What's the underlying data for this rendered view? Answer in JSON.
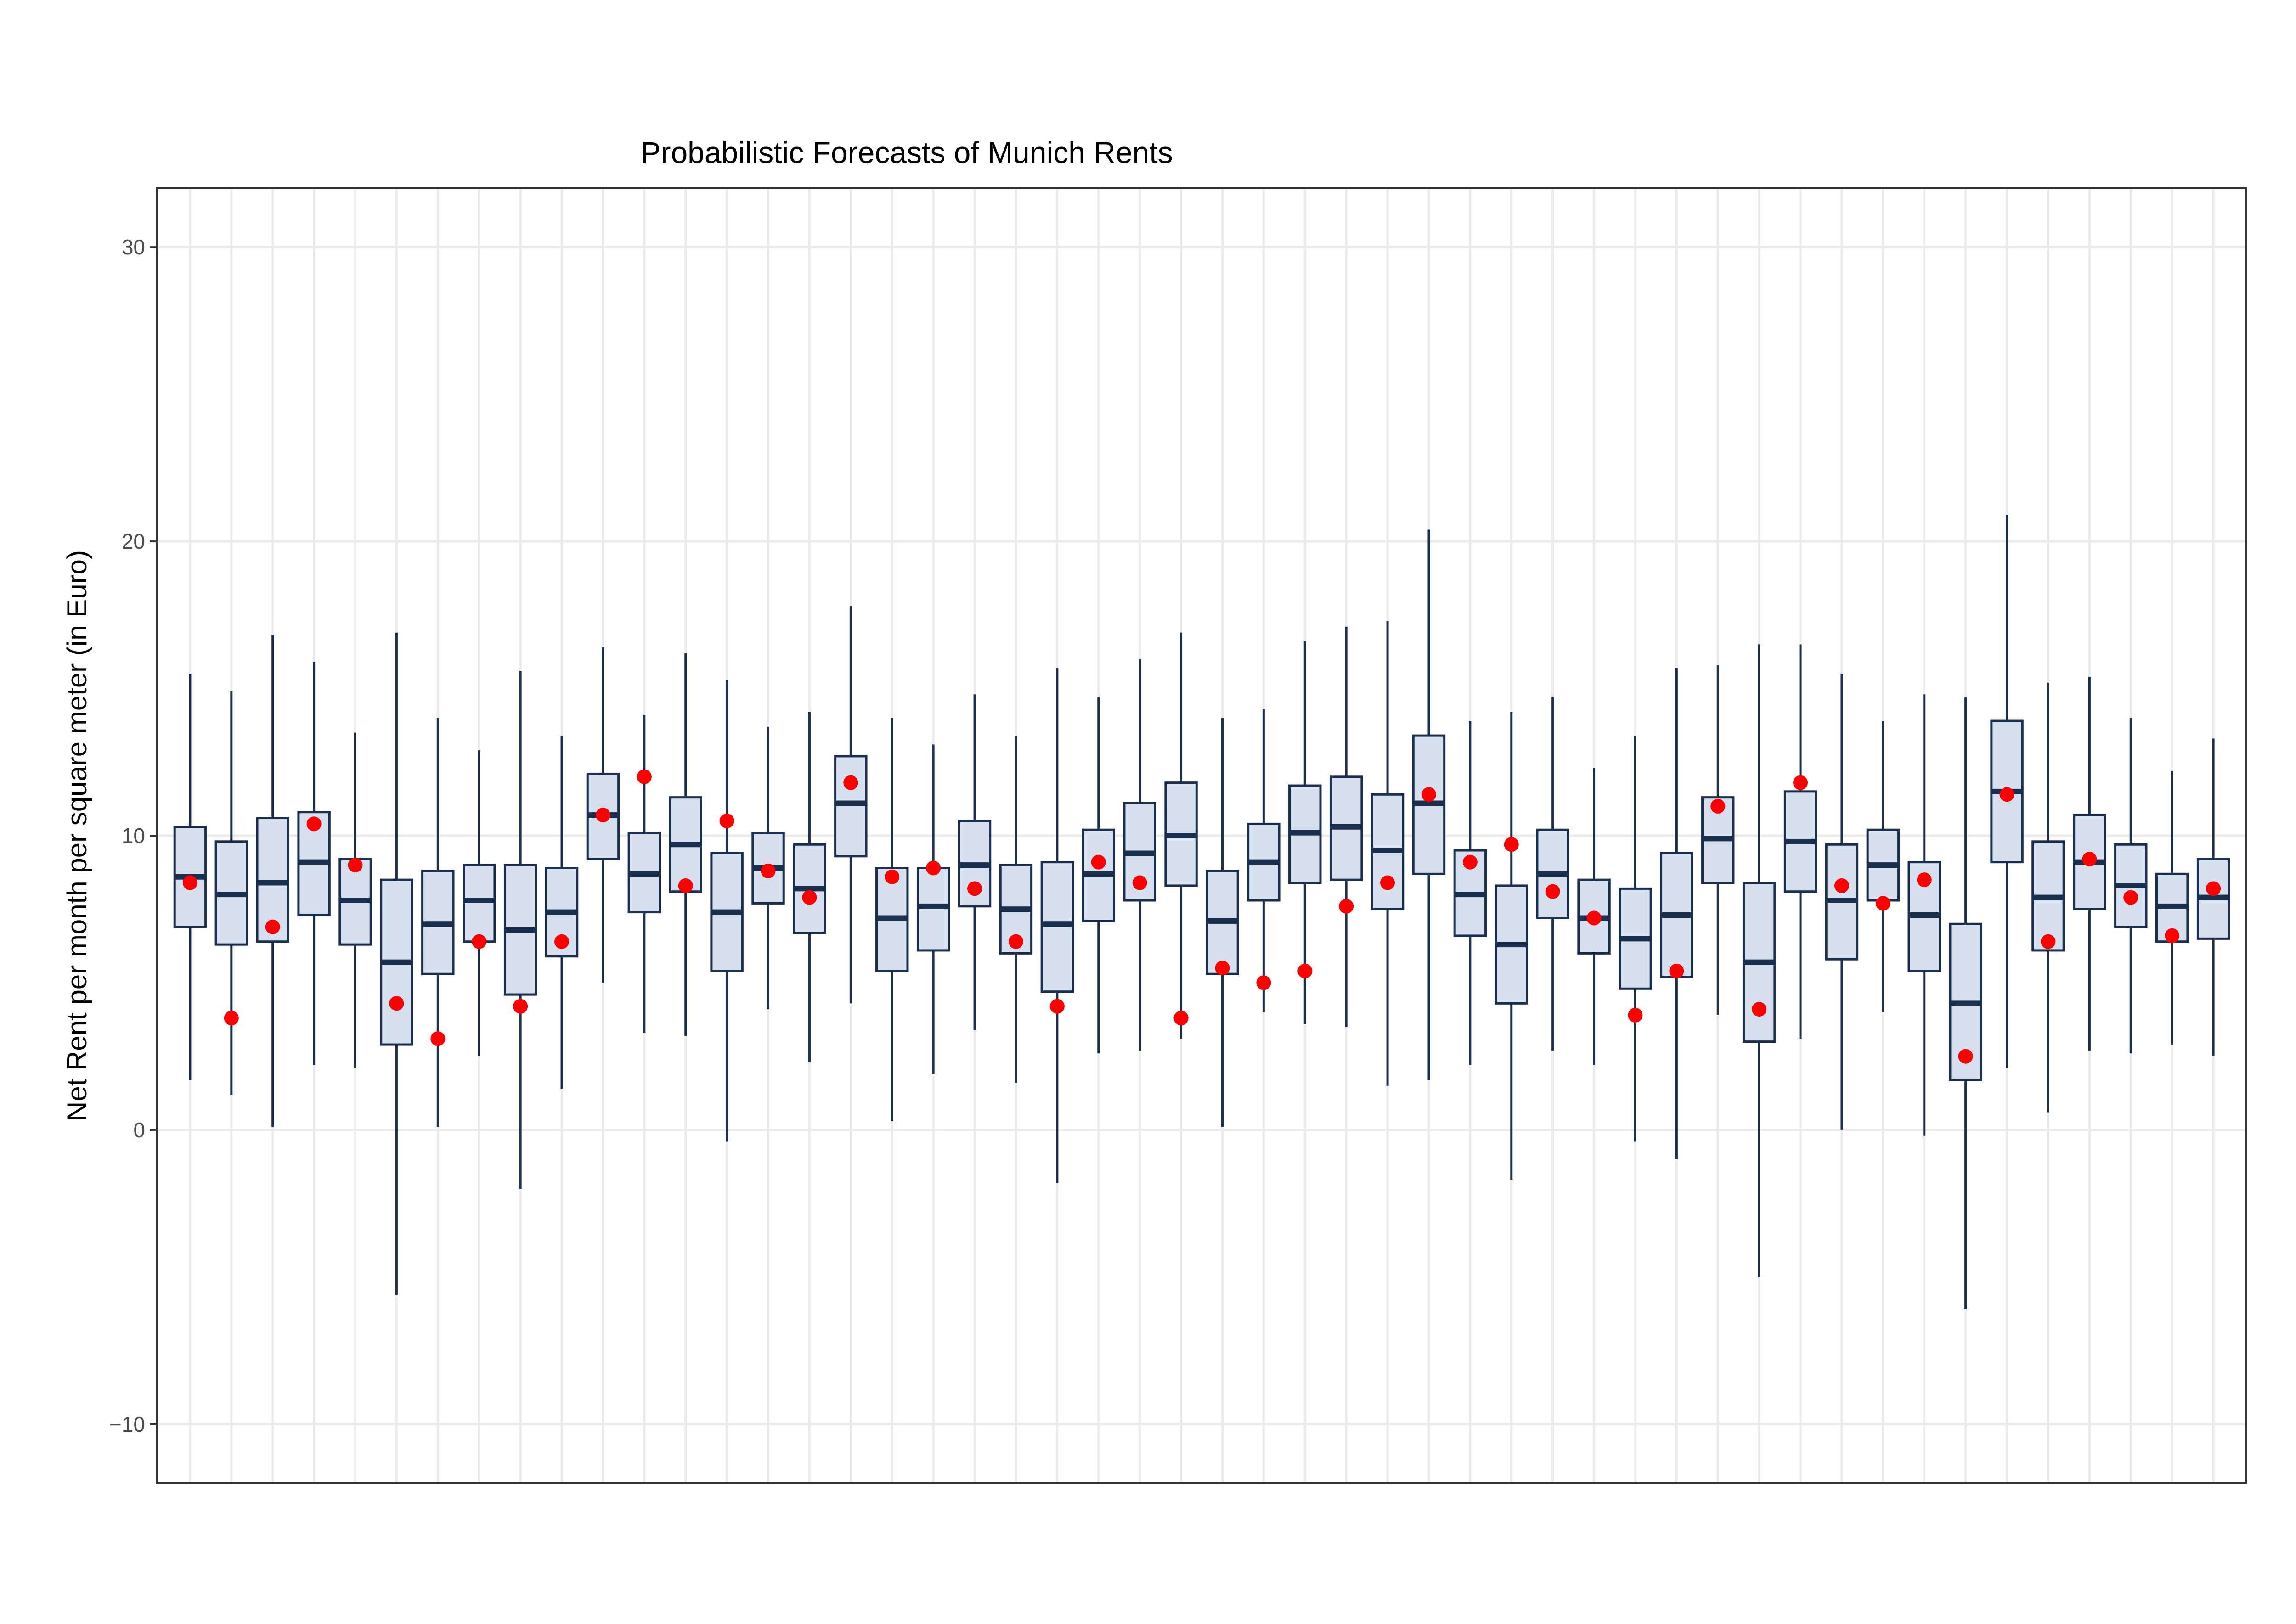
{
  "chart_data": {
    "type": "boxplot",
    "title": "Probabilistic Forecasts of Munich Rents",
    "xlabel": "",
    "ylabel": "Net Rent per month per square meter (in Euro)",
    "ylim": [
      -12,
      32
    ],
    "yticks": [
      -10,
      0,
      10,
      20,
      30
    ],
    "ytick_labels": [
      "−10",
      "0",
      "10",
      "20",
      "30"
    ],
    "grid": true,
    "legend": "none",
    "colors": {
      "box_fill": "#d7e0ee",
      "box_stroke": "#1a2f4d",
      "observation_point": "#ff0000",
      "grid_major": "#ebebeb",
      "grid_minor": "#f2f2f2",
      "panel_border": "#333333"
    },
    "boxes": [
      {
        "whisker_low": 1.7,
        "q1": 6.9,
        "median": 8.6,
        "q3": 10.3,
        "whisker_high": 15.5,
        "observed": 8.4
      },
      {
        "whisker_low": 1.2,
        "q1": 6.3,
        "median": 8.0,
        "q3": 9.8,
        "whisker_high": 14.9,
        "observed": 3.8
      },
      {
        "whisker_low": 0.1,
        "q1": 6.4,
        "median": 8.4,
        "q3": 10.6,
        "whisker_high": 16.8,
        "observed": 6.9
      },
      {
        "whisker_low": 2.2,
        "q1": 7.3,
        "median": 9.1,
        "q3": 10.8,
        "whisker_high": 15.9,
        "observed": 10.4
      },
      {
        "whisker_low": 2.1,
        "q1": 6.3,
        "median": 7.8,
        "q3": 9.2,
        "whisker_high": 13.5,
        "observed": 9.0
      },
      {
        "whisker_low": -5.6,
        "q1": 2.9,
        "median": 5.7,
        "q3": 8.5,
        "whisker_high": 16.9,
        "observed": 4.3
      },
      {
        "whisker_low": 0.1,
        "q1": 5.3,
        "median": 7.0,
        "q3": 8.8,
        "whisker_high": 14.0,
        "observed": 3.1
      },
      {
        "whisker_low": 2.5,
        "q1": 6.4,
        "median": 7.8,
        "q3": 9.0,
        "whisker_high": 12.9,
        "observed": 6.4
      },
      {
        "whisker_low": -2.0,
        "q1": 4.6,
        "median": 6.8,
        "q3": 9.0,
        "whisker_high": 15.6,
        "observed": 4.2
      },
      {
        "whisker_low": 1.4,
        "q1": 5.9,
        "median": 7.4,
        "q3": 8.9,
        "whisker_high": 13.4,
        "observed": 6.4
      },
      {
        "whisker_low": 5.0,
        "q1": 9.2,
        "median": 10.7,
        "q3": 12.1,
        "whisker_high": 16.4,
        "observed": 10.7
      },
      {
        "whisker_low": 3.3,
        "q1": 7.4,
        "median": 8.7,
        "q3": 10.1,
        "whisker_high": 14.1,
        "observed": 12.0
      },
      {
        "whisker_low": 3.2,
        "q1": 8.1,
        "median": 9.7,
        "q3": 11.3,
        "whisker_high": 16.2,
        "observed": 8.3
      },
      {
        "whisker_low": -0.4,
        "q1": 5.4,
        "median": 7.4,
        "q3": 9.4,
        "whisker_high": 15.3,
        "observed": 10.5
      },
      {
        "whisker_low": 4.1,
        "q1": 7.7,
        "median": 8.9,
        "q3": 10.1,
        "whisker_high": 13.7,
        "observed": 8.8
      },
      {
        "whisker_low": 2.3,
        "q1": 6.7,
        "median": 8.2,
        "q3": 9.7,
        "whisker_high": 14.2,
        "observed": 7.9
      },
      {
        "whisker_low": 4.3,
        "q1": 9.3,
        "median": 11.1,
        "q3": 12.7,
        "whisker_high": 17.8,
        "observed": 11.8
      },
      {
        "whisker_low": 0.3,
        "q1": 5.4,
        "median": 7.2,
        "q3": 8.9,
        "whisker_high": 14.0,
        "observed": 8.6
      },
      {
        "whisker_low": 1.9,
        "q1": 6.1,
        "median": 7.6,
        "q3": 8.9,
        "whisker_high": 13.1,
        "observed": 8.9
      },
      {
        "whisker_low": 3.4,
        "q1": 7.6,
        "median": 9.0,
        "q3": 10.5,
        "whisker_high": 14.8,
        "observed": 8.2
      },
      {
        "whisker_low": 1.6,
        "q1": 6.0,
        "median": 7.5,
        "q3": 9.0,
        "whisker_high": 13.4,
        "observed": 6.4
      },
      {
        "whisker_low": -1.8,
        "q1": 4.7,
        "median": 7.0,
        "q3": 9.1,
        "whisker_high": 15.7,
        "observed": 4.2
      },
      {
        "whisker_low": 2.6,
        "q1": 7.1,
        "median": 8.7,
        "q3": 10.2,
        "whisker_high": 14.7,
        "observed": 9.1
      },
      {
        "whisker_low": 2.7,
        "q1": 7.8,
        "median": 9.4,
        "q3": 11.1,
        "whisker_high": 16.0,
        "observed": 8.4
      },
      {
        "whisker_low": 3.1,
        "q1": 8.3,
        "median": 10.0,
        "q3": 11.8,
        "whisker_high": 16.9,
        "observed": 3.8
      },
      {
        "whisker_low": 0.1,
        "q1": 5.3,
        "median": 7.1,
        "q3": 8.8,
        "whisker_high": 14.0,
        "observed": 5.5
      },
      {
        "whisker_low": 4.0,
        "q1": 7.8,
        "median": 9.1,
        "q3": 10.4,
        "whisker_high": 14.3,
        "observed": 5.0
      },
      {
        "whisker_low": 3.6,
        "q1": 8.4,
        "median": 10.1,
        "q3": 11.7,
        "whisker_high": 16.6,
        "observed": 5.4
      },
      {
        "whisker_low": 3.5,
        "q1": 8.5,
        "median": 10.3,
        "q3": 12.0,
        "whisker_high": 17.1,
        "observed": 7.6
      },
      {
        "whisker_low": 1.5,
        "q1": 7.5,
        "median": 9.5,
        "q3": 11.4,
        "whisker_high": 17.3,
        "observed": 8.4
      },
      {
        "whisker_low": 1.7,
        "q1": 8.7,
        "median": 11.1,
        "q3": 13.4,
        "whisker_high": 20.4,
        "observed": 11.4
      },
      {
        "whisker_low": 2.2,
        "q1": 6.6,
        "median": 8.0,
        "q3": 9.5,
        "whisker_high": 13.9,
        "observed": 9.1
      },
      {
        "whisker_low": -1.7,
        "q1": 4.3,
        "median": 6.3,
        "q3": 8.3,
        "whisker_high": 14.2,
        "observed": 9.7
      },
      {
        "whisker_low": 2.7,
        "q1": 7.2,
        "median": 8.7,
        "q3": 10.2,
        "whisker_high": 14.7,
        "observed": 8.1
      },
      {
        "whisker_low": 2.2,
        "q1": 6.0,
        "median": 7.2,
        "q3": 8.5,
        "whisker_high": 12.3,
        "observed": 7.2
      },
      {
        "whisker_low": -0.4,
        "q1": 4.8,
        "median": 6.5,
        "q3": 8.2,
        "whisker_high": 13.4,
        "observed": 3.9
      },
      {
        "whisker_low": -1.0,
        "q1": 5.2,
        "median": 7.3,
        "q3": 9.4,
        "whisker_high": 15.7,
        "observed": 5.4
      },
      {
        "whisker_low": 3.9,
        "q1": 8.4,
        "median": 9.9,
        "q3": 11.3,
        "whisker_high": 15.8,
        "observed": 11.0
      },
      {
        "whisker_low": -5.0,
        "q1": 3.0,
        "median": 5.7,
        "q3": 8.4,
        "whisker_high": 16.5,
        "observed": 4.1
      },
      {
        "whisker_low": 3.1,
        "q1": 8.1,
        "median": 9.8,
        "q3": 11.5,
        "whisker_high": 16.5,
        "observed": 11.8
      },
      {
        "whisker_low": 0.0,
        "q1": 5.8,
        "median": 7.8,
        "q3": 9.7,
        "whisker_high": 15.5,
        "observed": 8.3
      },
      {
        "whisker_low": 4.0,
        "q1": 7.8,
        "median": 9.0,
        "q3": 10.2,
        "whisker_high": 13.9,
        "observed": 7.7
      },
      {
        "whisker_low": -0.2,
        "q1": 5.4,
        "median": 7.3,
        "q3": 9.1,
        "whisker_high": 14.8,
        "observed": 8.5
      },
      {
        "whisker_low": -6.1,
        "q1": 1.7,
        "median": 4.3,
        "q3": 7.0,
        "whisker_high": 14.7,
        "observed": 2.5
      },
      {
        "whisker_low": 2.1,
        "q1": 9.1,
        "median": 11.5,
        "q3": 13.9,
        "whisker_high": 20.9,
        "observed": 11.4
      },
      {
        "whisker_low": 0.6,
        "q1": 6.1,
        "median": 7.9,
        "q3": 9.8,
        "whisker_high": 15.2,
        "observed": 6.4
      },
      {
        "whisker_low": 2.7,
        "q1": 7.5,
        "median": 9.1,
        "q3": 10.7,
        "whisker_high": 15.4,
        "observed": 9.2
      },
      {
        "whisker_low": 2.6,
        "q1": 6.9,
        "median": 8.3,
        "q3": 9.7,
        "whisker_high": 14.0,
        "observed": 7.9
      },
      {
        "whisker_low": 2.9,
        "q1": 6.4,
        "median": 7.6,
        "q3": 8.7,
        "whisker_high": 12.2,
        "observed": 6.6
      },
      {
        "whisker_low": 2.5,
        "q1": 6.5,
        "median": 7.9,
        "q3": 9.2,
        "whisker_high": 13.3,
        "observed": 8.2
      }
    ]
  }
}
